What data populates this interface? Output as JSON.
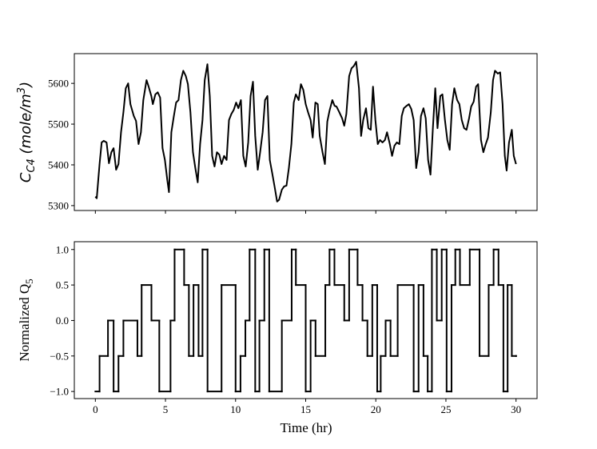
{
  "chart_data": [
    {
      "type": "line",
      "color": "#000000",
      "y_label_parts": [
        "C",
        "C4",
        " (mole/m",
        "3",
        ")"
      ],
      "xlim": [
        -1.5,
        31.5
      ],
      "xticks": [
        0,
        5,
        10,
        15,
        20,
        25,
        30
      ],
      "ylim": [
        5288,
        5673
      ],
      "yticks": [
        5300,
        5400,
        5500,
        5600
      ],
      "x": [
        0,
        0.1,
        0.3,
        0.45,
        0.6,
        0.8,
        0.97,
        1.14,
        1.3,
        1.48,
        1.65,
        1.83,
        2.0,
        2.17,
        2.34,
        2.5,
        2.74,
        2.9,
        3.08,
        3.25,
        3.42,
        3.65,
        3.8,
        3.99,
        4.1,
        4.28,
        4.45,
        4.62,
        4.79,
        4.96,
        5.13,
        5.25,
        5.42,
        5.6,
        5.76,
        5.93,
        6.1,
        6.27,
        6.45,
        6.6,
        6.78,
        6.96,
        7.13,
        7.3,
        7.47,
        7.64,
        7.8,
        7.99,
        8.16,
        8.33,
        8.5,
        8.67,
        8.84,
        9.0,
        9.18,
        9.36,
        9.53,
        9.7,
        9.87,
        10.04,
        10.2,
        10.38,
        10.55,
        10.72,
        10.9,
        11.07,
        11.24,
        11.4,
        11.58,
        11.75,
        11.93,
        12.1,
        12.27,
        12.44,
        12.6,
        12.8,
        12.96,
        13.1,
        13.3,
        13.46,
        13.63,
        13.8,
        13.98,
        14.15,
        14.3,
        14.5,
        14.66,
        14.83,
        15.0,
        15.17,
        15.35,
        15.5,
        15.69,
        15.86,
        16.0,
        16.2,
        16.37,
        16.54,
        16.7,
        16.9,
        17.06,
        17.2,
        17.4,
        17.6,
        17.75,
        17.9,
        18.1,
        18.27,
        18.44,
        18.6,
        18.8,
        18.95,
        19.1,
        19.3,
        19.47,
        19.64,
        19.8,
        19.97,
        20.14,
        20.3,
        20.48,
        20.65,
        20.8,
        21.0,
        21.16,
        21.33,
        21.5,
        21.68,
        21.85,
        22.0,
        22.2,
        22.36,
        22.53,
        22.7,
        22.88,
        23.05,
        23.22,
        23.4,
        23.56,
        23.73,
        23.9,
        24.07,
        24.24,
        24.4,
        24.6,
        24.75,
        24.93,
        25.1,
        25.27,
        25.44,
        25.6,
        25.8,
        25.96,
        26.13,
        26.3,
        26.47,
        26.65,
        26.8,
        26.98,
        27.15,
        27.3,
        27.5,
        27.67,
        27.84,
        28.0,
        28.2,
        28.36,
        28.5,
        28.7,
        28.87,
        29.04,
        29.2,
        29.33,
        29.5,
        29.7,
        29.84,
        30.0
      ],
      "values": [
        5322,
        5318,
        5402,
        5455,
        5459,
        5455,
        5404,
        5431,
        5441,
        5388,
        5402,
        5480,
        5529,
        5588,
        5600,
        5549,
        5520,
        5508,
        5451,
        5480,
        5559,
        5608,
        5592,
        5569,
        5549,
        5573,
        5578,
        5565,
        5441,
        5412,
        5363,
        5333,
        5480,
        5520,
        5553,
        5559,
        5608,
        5631,
        5618,
        5598,
        5529,
        5431,
        5392,
        5357,
        5451,
        5510,
        5608,
        5647,
        5569,
        5422,
        5396,
        5431,
        5425,
        5402,
        5422,
        5412,
        5510,
        5525,
        5535,
        5553,
        5539,
        5559,
        5422,
        5396,
        5455,
        5569,
        5604,
        5471,
        5388,
        5431,
        5480,
        5559,
        5569,
        5412,
        5382,
        5343,
        5310,
        5314,
        5339,
        5347,
        5349,
        5392,
        5451,
        5553,
        5573,
        5559,
        5598,
        5584,
        5549,
        5529,
        5510,
        5467,
        5553,
        5549,
        5471,
        5431,
        5402,
        5506,
        5533,
        5559,
        5545,
        5543,
        5529,
        5514,
        5496,
        5525,
        5618,
        5637,
        5643,
        5653,
        5588,
        5471,
        5510,
        5539,
        5490,
        5486,
        5592,
        5510,
        5451,
        5461,
        5455,
        5461,
        5480,
        5451,
        5422,
        5447,
        5455,
        5451,
        5520,
        5539,
        5545,
        5549,
        5537,
        5510,
        5392,
        5431,
        5520,
        5539,
        5514,
        5412,
        5376,
        5490,
        5588,
        5490,
        5569,
        5573,
        5510,
        5461,
        5437,
        5549,
        5588,
        5559,
        5549,
        5510,
        5490,
        5486,
        5514,
        5543,
        5555,
        5592,
        5598,
        5461,
        5431,
        5451,
        5467,
        5529,
        5608,
        5631,
        5624,
        5627,
        5549,
        5422,
        5386,
        5455,
        5486,
        5422,
        5402
      ]
    },
    {
      "type": "step",
      "color": "#000000",
      "x_label": "Time (hr)",
      "y_label_parts": [
        "Normalized Q",
        "5"
      ],
      "xlim": [
        -1.5,
        31.5
      ],
      "xticks": [
        0,
        5,
        10,
        15,
        20,
        25,
        30
      ],
      "ylim": [
        -1.1,
        1.11
      ],
      "yticks": [
        {
          "value": -1,
          "label": "−1.0"
        },
        {
          "value": -0.5,
          "label": "−0.5"
        },
        {
          "value": 0,
          "label": "0.0"
        },
        {
          "value": 0.5,
          "label": "0.5"
        },
        {
          "value": 1,
          "label": "1.0"
        }
      ],
      "x": [
        0,
        0.3,
        0.9,
        1.3,
        1.65,
        2.0,
        3.0,
        3.3,
        4.0,
        4.56,
        5.36,
        5.65,
        6.33,
        6.67,
        7.0,
        7.36,
        7.64,
        8.0,
        9.0,
        10.0,
        10.35,
        10.7,
        11.0,
        11.4,
        11.7,
        12.05,
        12.4,
        13.3,
        14.0,
        14.3,
        15.0,
        15.35,
        15.7,
        16.4,
        16.7,
        17.05,
        17.75,
        18.1,
        18.7,
        19.05,
        19.4,
        19.75,
        20.1,
        20.35,
        20.7,
        21.05,
        21.56,
        22.7,
        23.05,
        23.4,
        23.7,
        24.0,
        24.35,
        24.7,
        25.05,
        25.4,
        25.67,
        26.0,
        26.7,
        27.4,
        28.05,
        28.4,
        28.75,
        29.1,
        29.4,
        29.7,
        30.0
      ],
      "values": [
        -1,
        -0.5,
        0,
        -1,
        -0.5,
        0,
        -0.5,
        0.5,
        0,
        -1,
        0,
        1,
        0.5,
        -0.5,
        0.5,
        -0.5,
        1,
        -1,
        0.5,
        -1,
        -0.5,
        0,
        1,
        -1,
        0,
        1,
        -1,
        0,
        1,
        0.5,
        -1,
        0,
        -0.5,
        0.5,
        1,
        0.5,
        0,
        1,
        0.5,
        0,
        -0.5,
        0.5,
        -1,
        -0.5,
        0,
        -0.5,
        0.5,
        -1,
        0.5,
        -0.5,
        -1,
        1,
        0,
        1,
        -1,
        0.5,
        1,
        0.5,
        1,
        -0.5,
        0.5,
        1,
        0.5,
        -1,
        0.5,
        -0.5,
        -0.5
      ]
    }
  ]
}
